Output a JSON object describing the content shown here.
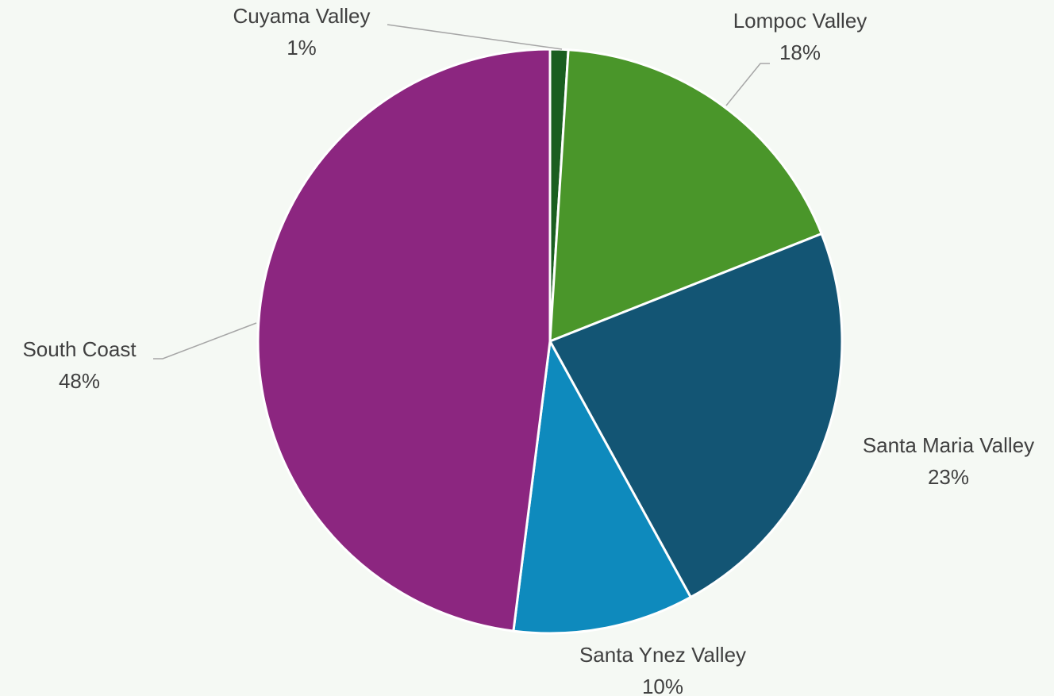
{
  "chart_data": {
    "type": "pie",
    "categories": [
      "Cuyama Valley",
      "Lompoc Valley",
      "Santa Maria Valley",
      "Santa Ynez Valley",
      "South Coast"
    ],
    "values": [
      1,
      18,
      23,
      10,
      48
    ],
    "value_labels": [
      "1%",
      "18%",
      "23%",
      "10%",
      "48%"
    ],
    "colors": [
      "#1a5e20",
      "#4a962a",
      "#135574",
      "#0e8abd",
      "#8c2680"
    ]
  }
}
